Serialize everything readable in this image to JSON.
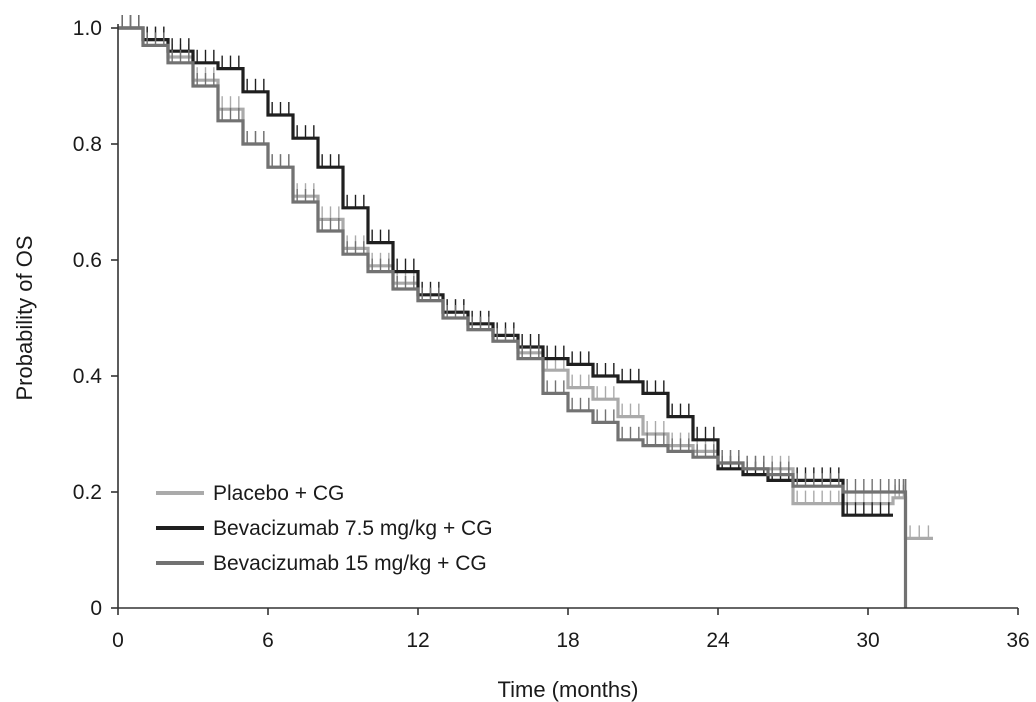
{
  "chart_data": {
    "type": "line",
    "subtype": "kaplan-meier step curves with censor marks",
    "xlabel": "Time (months)",
    "ylabel": "Probability of OS",
    "xlim": [
      0,
      36
    ],
    "ylim": [
      0,
      1.0
    ],
    "x_ticks": [
      0,
      6,
      12,
      18,
      24,
      30,
      36
    ],
    "x_tick_labels": [
      "0",
      "6",
      "12",
      "18",
      "24",
      "30",
      "36"
    ],
    "y_ticks": [
      0,
      0.2,
      0.4,
      0.6,
      0.8,
      1.0
    ],
    "y_tick_labels": [
      "0",
      "0.2",
      "0.4",
      "0.6",
      "0.8",
      "1.0"
    ],
    "grid": false,
    "legend_position": "bottom-left",
    "series": [
      {
        "name": "Placebo + CG",
        "color": "#aaaaaa",
        "x": [
          0,
          1,
          2,
          3,
          4,
          5,
          6,
          7,
          8,
          9,
          10,
          11,
          12,
          13,
          14,
          15,
          16,
          17,
          18,
          19,
          20,
          21,
          22,
          23,
          24,
          25,
          26,
          27,
          28,
          29,
          30,
          31,
          31.5,
          32.6
        ],
        "y": [
          1.0,
          0.98,
          0.95,
          0.91,
          0.86,
          0.8,
          0.76,
          0.71,
          0.67,
          0.62,
          0.59,
          0.56,
          0.53,
          0.51,
          0.48,
          0.46,
          0.44,
          0.41,
          0.38,
          0.36,
          0.33,
          0.3,
          0.28,
          0.27,
          0.25,
          0.24,
          0.24,
          0.18,
          0.18,
          0.18,
          0.18,
          0.19,
          0.12,
          0.12
        ]
      },
      {
        "name": "Bevacizumab 7.5 mg/kg + CG",
        "color": "#1f1f1f",
        "x": [
          0,
          1,
          2,
          3,
          4,
          5,
          6,
          7,
          8,
          9,
          10,
          11,
          12,
          13,
          14,
          15,
          16,
          17,
          18,
          19,
          20,
          21,
          22,
          23,
          24,
          25,
          26,
          27,
          28,
          29,
          30,
          31
        ],
        "y": [
          1.0,
          0.98,
          0.96,
          0.94,
          0.93,
          0.89,
          0.85,
          0.81,
          0.76,
          0.69,
          0.63,
          0.58,
          0.54,
          0.51,
          0.49,
          0.47,
          0.45,
          0.43,
          0.42,
          0.4,
          0.39,
          0.37,
          0.33,
          0.29,
          0.24,
          0.23,
          0.22,
          0.22,
          0.22,
          0.16,
          0.16,
          0.16
        ]
      },
      {
        "name": "Bevacizumab 15 mg/kg + CG",
        "color": "#727272",
        "x": [
          0,
          1,
          2,
          3,
          4,
          5,
          6,
          7,
          8,
          9,
          10,
          11,
          12,
          13,
          14,
          15,
          16,
          17,
          18,
          19,
          20,
          21,
          22,
          23,
          24,
          25,
          26,
          27,
          28,
          29,
          30,
          31,
          31.5,
          31.5
        ],
        "y": [
          1.0,
          0.97,
          0.94,
          0.9,
          0.84,
          0.8,
          0.76,
          0.7,
          0.65,
          0.61,
          0.58,
          0.55,
          0.53,
          0.5,
          0.48,
          0.46,
          0.43,
          0.37,
          0.34,
          0.32,
          0.29,
          0.28,
          0.27,
          0.26,
          0.25,
          0.24,
          0.23,
          0.21,
          0.21,
          0.2,
          0.2,
          0.2,
          0.2,
          0
        ]
      }
    ]
  }
}
